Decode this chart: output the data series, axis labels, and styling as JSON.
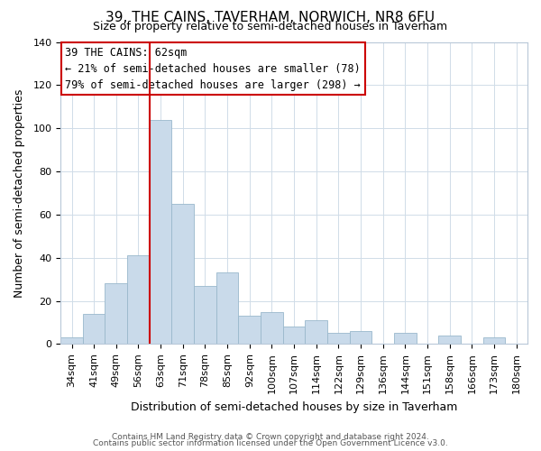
{
  "title": "39, THE CAINS, TAVERHAM, NORWICH, NR8 6FU",
  "subtitle": "Size of property relative to semi-detached houses in Taverham",
  "xlabel": "Distribution of semi-detached houses by size in Taverham",
  "ylabel": "Number of semi-detached properties",
  "bin_labels": [
    "34sqm",
    "41sqm",
    "49sqm",
    "56sqm",
    "63sqm",
    "71sqm",
    "78sqm",
    "85sqm",
    "92sqm",
    "100sqm",
    "107sqm",
    "114sqm",
    "122sqm",
    "129sqm",
    "136sqm",
    "144sqm",
    "151sqm",
    "158sqm",
    "166sqm",
    "173sqm",
    "180sqm"
  ],
  "bar_values": [
    3,
    14,
    28,
    41,
    104,
    65,
    27,
    33,
    13,
    15,
    8,
    11,
    5,
    6,
    0,
    5,
    0,
    4,
    0,
    3,
    0
  ],
  "bar_color": "#c9daea",
  "bar_edge_color": "#9ab8cc",
  "highlight_line_color": "#cc0000",
  "highlight_bar_index": 4,
  "annotation_text_line1": "39 THE CAINS: 62sqm",
  "annotation_text_line2": "← 21% of semi-detached houses are smaller (78)",
  "annotation_text_line3": "79% of semi-detached houses are larger (298) →",
  "ylim": [
    0,
    140
  ],
  "yticks": [
    0,
    20,
    40,
    60,
    80,
    100,
    120,
    140
  ],
  "footer_line1": "Contains HM Land Registry data © Crown copyright and database right 2024.",
  "footer_line2": "Contains public sector information licensed under the Open Government Licence v3.0.",
  "background_color": "#ffffff",
  "plot_background_color": "#ffffff",
  "grid_color": "#d0dce8",
  "title_fontsize": 11,
  "subtitle_fontsize": 9,
  "xlabel_fontsize": 9,
  "ylabel_fontsize": 9,
  "tick_fontsize": 8,
  "footer_fontsize": 6.5,
  "ann_fontsize": 8.5
}
